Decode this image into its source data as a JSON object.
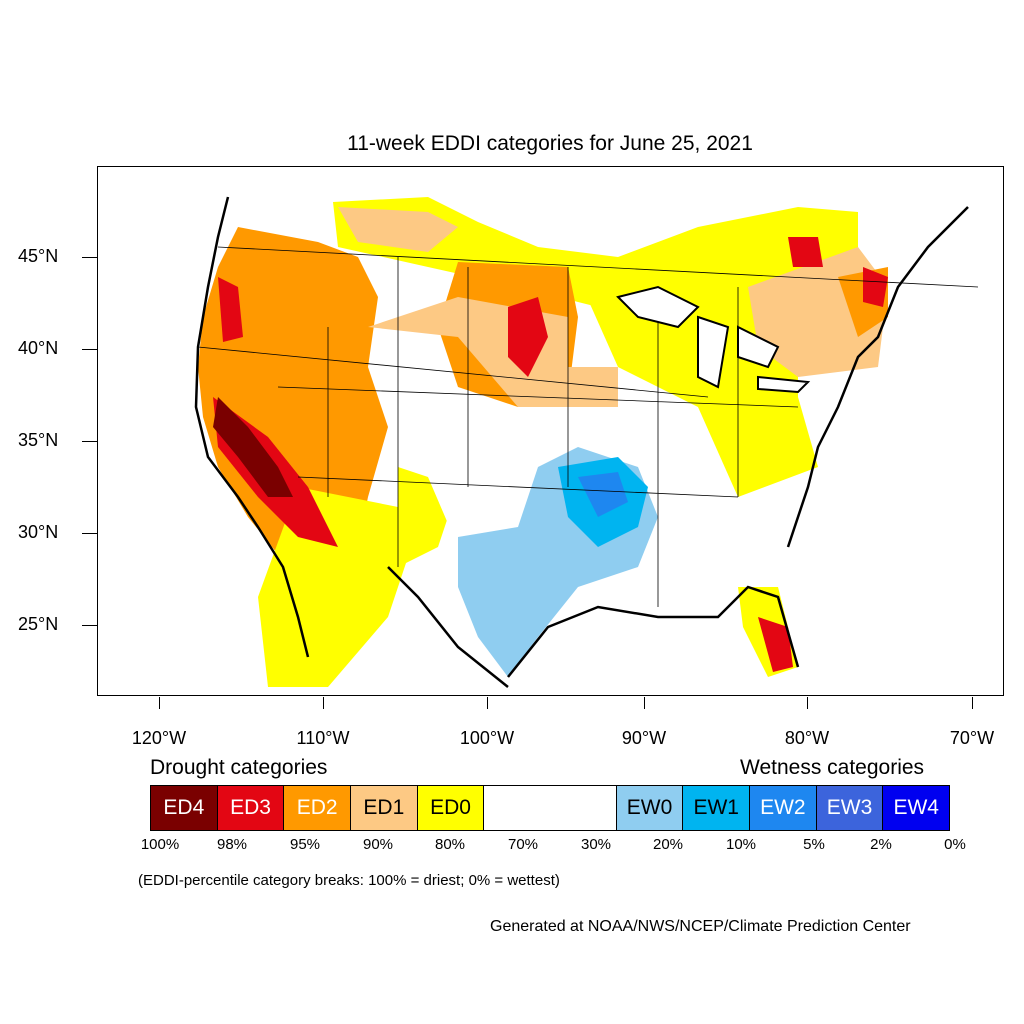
{
  "title": "11-week EDDI categories for June 25, 2021",
  "y_axis": {
    "ticks": [
      "45°N",
      "40°N",
      "35°N",
      "30°N",
      "25°N"
    ]
  },
  "x_axis": {
    "ticks": [
      "120°W",
      "110°W",
      "100°W",
      "90°W",
      "80°W",
      "70°W"
    ]
  },
  "legend": {
    "drought_heading": "Drought categories",
    "wetness_heading": "Wetness categories",
    "categories": [
      {
        "label": "ED4",
        "color": "#7a0000",
        "text_color": "#ffffff"
      },
      {
        "label": "ED3",
        "color": "#e30613",
        "text_color": "#ffffff"
      },
      {
        "label": "ED2",
        "color": "#ff9900",
        "text_color": "#ffffff"
      },
      {
        "label": "ED1",
        "color": "#fdc984",
        "text_color": "#000000"
      },
      {
        "label": "ED0",
        "color": "#ffff00",
        "text_color": "#000000"
      },
      {
        "label": "",
        "color": "#ffffff",
        "text_color": "#000000"
      },
      {
        "label": "EW0",
        "color": "#8fcdf0",
        "text_color": "#000000"
      },
      {
        "label": "EW1",
        "color": "#00b4f0",
        "text_color": "#000000"
      },
      {
        "label": "EW2",
        "color": "#1e87f0",
        "text_color": "#ffffff"
      },
      {
        "label": "EW3",
        "color": "#3c64dc",
        "text_color": "#ffffff"
      },
      {
        "label": "EW4",
        "color": "#0000f0",
        "text_color": "#ffffff"
      }
    ],
    "percentiles": [
      "100%",
      "98%",
      "95%",
      "90%",
      "80%",
      "70%",
      "30%",
      "20%",
      "10%",
      "5%",
      "2%",
      "0%"
    ]
  },
  "note": "(EDDI-percentile category breaks: 100% = driest; 0% = wettest)",
  "credit": "Generated at NOAA/NWS/NCEP/Climate Prediction Center"
}
